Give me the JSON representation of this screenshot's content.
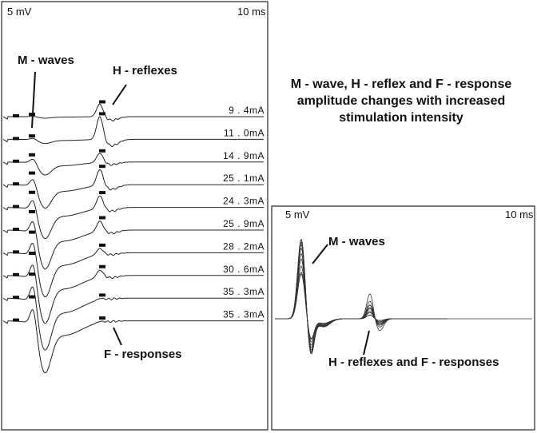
{
  "title": {
    "line1": "M - wave, H - reflex and F - response",
    "line2": "amplitude changes with increased",
    "line3": "stimulation intensity"
  },
  "left_panel": {
    "voltage_scale": "5 mV",
    "time_scale": "10 ms",
    "label_m_waves": "M - waves",
    "label_h_reflexes": "H - reflexes",
    "label_f_responses": "F - responses",
    "traces": [
      {
        "intensity": "9 . 4mA",
        "m_amp": 0.03,
        "h_amp": 0.55
      },
      {
        "intensity": "11 . 0mA",
        "m_amp": 0.08,
        "h_amp": 1.0
      },
      {
        "intensity": "14 . 9mA",
        "m_amp": 0.25,
        "h_amp": 0.4
      },
      {
        "intensity": "25 . 1mA",
        "m_amp": 0.45,
        "h_amp": 0.7
      },
      {
        "intensity": "24 . 3mA",
        "m_amp": 0.6,
        "h_amp": 0.55
      },
      {
        "intensity": "25 . 9mA",
        "m_amp": 0.75,
        "h_amp": 0.45
      },
      {
        "intensity": "28 . 2mA",
        "m_amp": 0.85,
        "h_amp": 0.25
      },
      {
        "intensity": "30 . 6mA",
        "m_amp": 0.92,
        "h_amp": 0.3
      },
      {
        "intensity": "35 . 3mA",
        "m_amp": 1.0,
        "h_amp": 0.06
      },
      {
        "intensity": "35 . 3mA",
        "m_amp": 1.0,
        "h_amp": 0.05
      }
    ]
  },
  "right_panel": {
    "voltage_scale": "5 mV",
    "time_scale": "10 ms",
    "label_m_waves": "M - waves",
    "label_h_f": "H - reflexes and F - responses"
  }
}
